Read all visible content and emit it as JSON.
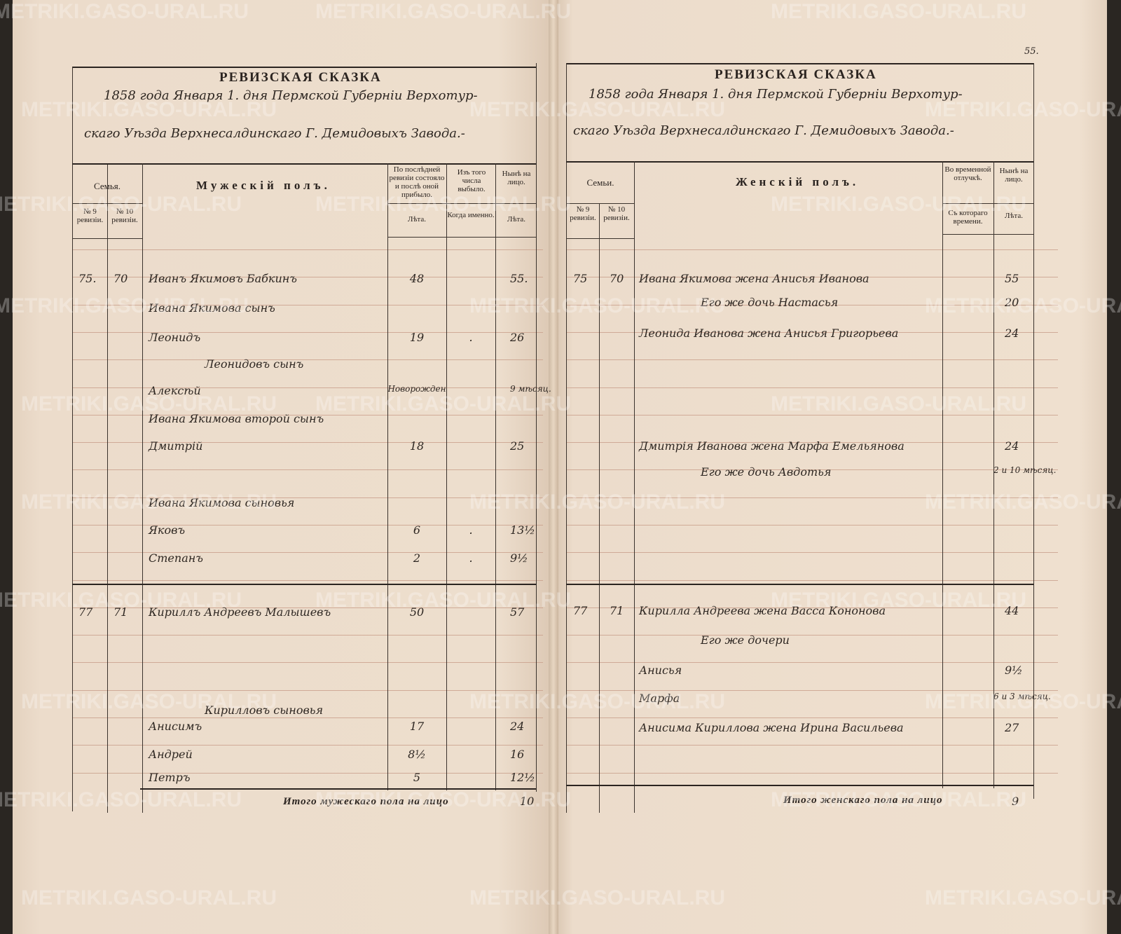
{
  "page_number": "55.",
  "watermark": "METRIKI.GASO-URAL.RU",
  "colors": {
    "paper": "#ecdccb",
    "ruling": "#c89d8a",
    "ink": "#2b2420"
  },
  "left_page": {
    "title": "РЕВИЗСКАЯ СКАЗКА",
    "heading_line1": "1858 года Января 1. дня Пермской Губернiи Верхотур-",
    "heading_line2": "скаго Уѣзда Верхнесалдинскаго Г. Демидовыхъ Завода.-",
    "columns": {
      "family": "Семья.",
      "rev9": "№ 9 ревизiи.",
      "rev10": "№ 10 ревизiи.",
      "sex": "Мужескiй полъ.",
      "last_rev": "По послѣдней ревизiи состояло и послѣ оной прибыло.",
      "last_rev_sub": "Лѣта.",
      "left": "Изъ того числа выбыло.",
      "left_sub": "Когда именно.",
      "now": "Нынѣ на лицо.",
      "now_sub": "Лѣта."
    },
    "rows": [
      {
        "rev9": "75.",
        "rev10": "70",
        "name": "Иванъ Якимовъ Бабкинъ",
        "age_last": "48",
        "left": "",
        "age_now": "55."
      },
      {
        "rev9": "",
        "rev10": "",
        "name": "Ивана Якимова сынъ",
        "age_last": "",
        "left": "",
        "age_now": ""
      },
      {
        "rev9": "",
        "rev10": "",
        "name": "Леонидъ",
        "age_last": "19",
        "left": ".",
        "age_now": "26"
      },
      {
        "rev9": "",
        "rev10": "",
        "name": "Леонидовъ сынъ",
        "indent": true,
        "age_last": "",
        "left": "",
        "age_now": ""
      },
      {
        "rev9": "",
        "rev10": "",
        "name": "Алексѣй",
        "age_last": "Новорожден",
        "left": "",
        "age_now": "9 мѣсяц."
      },
      {
        "rev9": "",
        "rev10": "",
        "name": "Ивана Якимова второй сынъ",
        "age_last": "",
        "left": "",
        "age_now": ""
      },
      {
        "rev9": "",
        "rev10": "",
        "name": "Дмитрiй",
        "age_last": "18",
        "left": "",
        "age_now": "25"
      },
      {
        "rev9": "",
        "rev10": "",
        "name": "Ивана Якимова сыновья",
        "age_last": "",
        "left": "",
        "age_now": ""
      },
      {
        "rev9": "",
        "rev10": "",
        "name": "Яковъ",
        "age_last": "6",
        "left": ".",
        "age_now": "13½"
      },
      {
        "rev9": "",
        "rev10": "",
        "name": "Степанъ",
        "age_last": "2",
        "left": ".",
        "age_now": "9½"
      },
      {
        "rev9": "77",
        "rev10": "71",
        "name": "Кириллъ Андреевъ Малышевъ",
        "age_last": "50",
        "left": "",
        "age_now": "57"
      },
      {
        "rev9": "",
        "rev10": "",
        "name": "Кирилловъ сыновья",
        "indent": true,
        "age_last": "",
        "left": "",
        "age_now": ""
      },
      {
        "rev9": "",
        "rev10": "",
        "name": "Анисимъ",
        "age_last": "17",
        "left": "",
        "age_now": "24"
      },
      {
        "rev9": "",
        "rev10": "",
        "name": "Андрей",
        "age_last": "8½",
        "left": "",
        "age_now": "16"
      },
      {
        "rev9": "",
        "rev10": "",
        "name": "Петръ",
        "age_last": "5",
        "left": "",
        "age_now": "12½"
      }
    ],
    "total_label": "Итого мужескаго пола на лицо",
    "total_value": "10"
  },
  "right_page": {
    "title": "РЕВИЗСКАЯ СКАЗКА",
    "heading_line1": "1858 года Января 1. дня Пермской Губернiи Верхотур-",
    "heading_line2": "скаго Уѣзда Верхнесалдинскаго Г. Демидовыхъ Завода.-",
    "columns": {
      "family": "Семьи.",
      "rev9": "№ 9 ревизiи.",
      "rev10": "№ 10 ревизiи.",
      "sex": "Женскiй полъ.",
      "absent": "Во временной отлучкѣ.",
      "absent_sub": "Съ котораго времени.",
      "now": "Нынѣ на лицо.",
      "now_sub": "Лѣта."
    },
    "rows": [
      {
        "rev9": "75",
        "rev10": "70",
        "name": "Ивана Якимова жена Анисья Иванова",
        "absent": "",
        "age_now": "55"
      },
      {
        "rev9": "",
        "rev10": "",
        "name": "Его же дочь Настасья",
        "indent": true,
        "absent": "",
        "age_now": "20"
      },
      {
        "rev9": "",
        "rev10": "",
        "name": "Леонида Иванова жена Анисья Григорьева",
        "absent": "",
        "age_now": "24"
      },
      {
        "rev9": "",
        "rev10": "",
        "name": "Дмитрiя Иванова жена Марфа Емельянова",
        "absent": "",
        "age_now": "24"
      },
      {
        "rev9": "",
        "rev10": "",
        "name": "Его же дочь Авдотья",
        "indent": true,
        "absent": "",
        "age_now": "2 и 10 мѣсяц."
      },
      {
        "rev9": "77",
        "rev10": "71",
        "name": "Кирилла Андреева жена Васса Кононова",
        "absent": "",
        "age_now": "44"
      },
      {
        "rev9": "",
        "rev10": "",
        "name": "Его же дочери",
        "indent": true,
        "absent": "",
        "age_now": ""
      },
      {
        "rev9": "",
        "rev10": "",
        "name": "Анисья",
        "absent": "",
        "age_now": "9½"
      },
      {
        "rev9": "",
        "rev10": "",
        "name": "Марфа",
        "absent": "",
        "age_now": "6 и 3 мѣсяц."
      },
      {
        "rev9": "",
        "rev10": "",
        "name": "Анисима Кириллова жена Ирина Васильева",
        "absent": "",
        "age_now": "27"
      }
    ],
    "total_label": "Итого женскаго пола на лицо",
    "total_value": "9"
  }
}
